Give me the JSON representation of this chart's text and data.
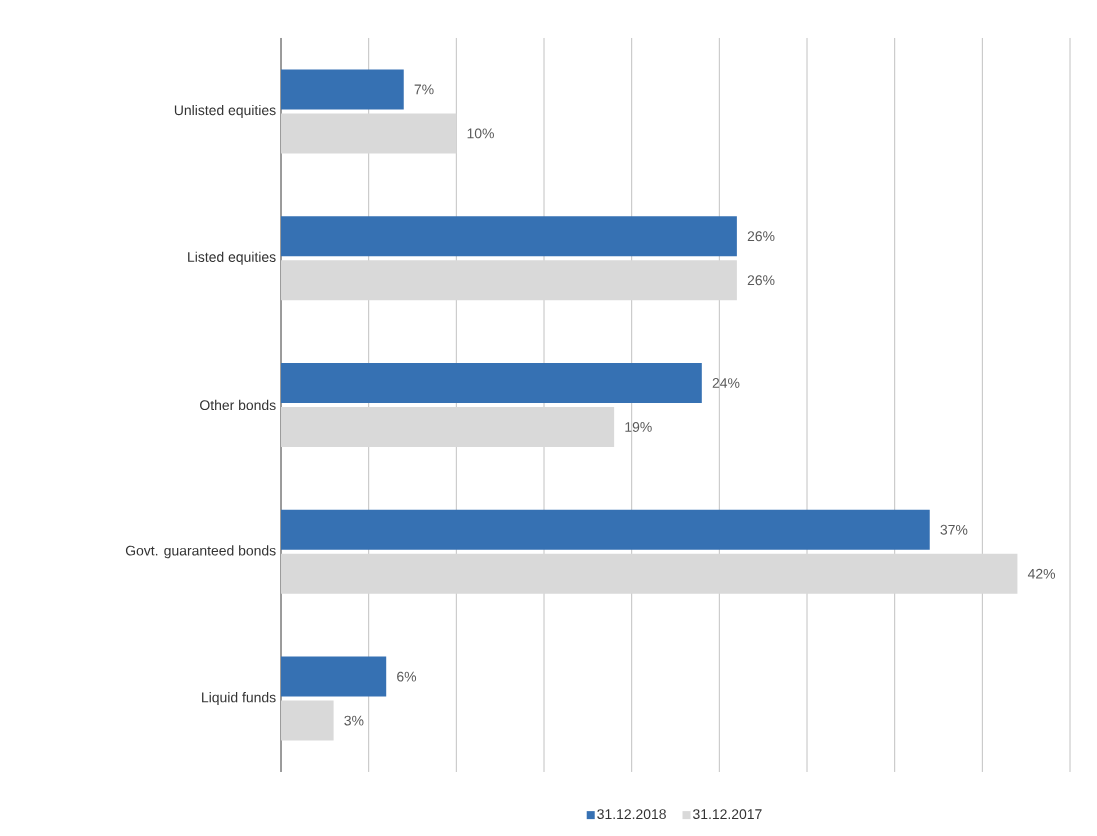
{
  "chart_data": {
    "type": "bar",
    "orientation": "horizontal",
    "categories": [
      "Unlisted equities",
      "Listed equities",
      "Other bonds",
      "Govt. guaranteed bonds",
      "Liquid funds"
    ],
    "series": [
      {
        "name": "31.12.2018",
        "color": "#3671b3",
        "values": [
          7,
          26,
          24,
          37,
          6
        ],
        "value_labels": [
          "7%",
          "26%",
          "24%",
          "37%",
          "6%"
        ]
      },
      {
        "name": "31.12.2017",
        "color": "#d9d9d9",
        "values": [
          10,
          26,
          19,
          42,
          3
        ],
        "value_labels": [
          "10%",
          "26%",
          "19%",
          "42%",
          "3%"
        ]
      }
    ],
    "xlim": [
      0,
      45
    ],
    "xticks": [
      {
        "value": 0,
        "label": null
      },
      {
        "value": 5,
        "label": null
      },
      {
        "value": 10,
        "label": null
      },
      {
        "value": 15,
        "label": null
      },
      {
        "value": 20,
        "label": null
      },
      {
        "value": 25,
        "label": null
      },
      {
        "value": 30,
        "label": null
      },
      {
        "value": 35,
        "label": null
      },
      {
        "value": 40,
        "label": null
      },
      {
        "value": 45,
        "label": null
      }
    ],
    "grid": "x",
    "legend": "bottom",
    "tick_labels": "y"
  }
}
